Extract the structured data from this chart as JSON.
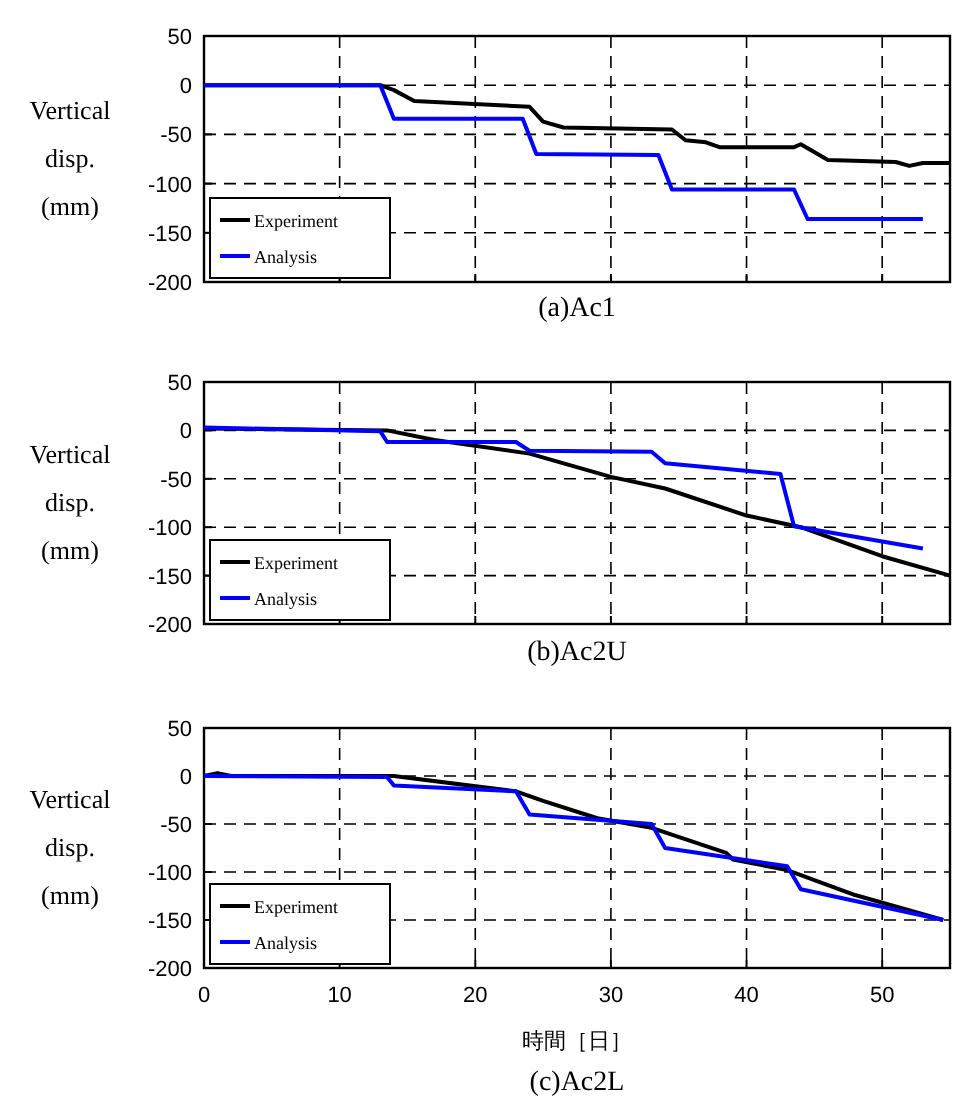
{
  "chart_data": [
    {
      "type": "line",
      "title": "(a)Ac1",
      "ylabel": "Vertical disp. (mm)",
      "xlim": [
        0,
        55
      ],
      "ylim": [
        -200,
        50
      ],
      "xticks": [
        0,
        10,
        20,
        30,
        40,
        50
      ],
      "yticks": [
        -200,
        -150,
        -100,
        -50,
        0,
        50
      ],
      "grid": true,
      "legend": "bottom left",
      "tick_labels": "y",
      "series": [
        {
          "name": "Experiment",
          "color": "#000000",
          "x": [
            0,
            13,
            14,
            15.5,
            24,
            25,
            26.5,
            34.5,
            35.5,
            37,
            38,
            43.5,
            44,
            46,
            51,
            52,
            53,
            55
          ],
          "values": [
            0,
            0,
            -5,
            -16,
            -22,
            -37,
            -43,
            -45,
            -56,
            -58,
            -63,
            -63,
            -60,
            -76,
            -78,
            -82,
            -79,
            -79
          ]
        },
        {
          "name": "Analysis",
          "color": "#0000ff",
          "x": [
            0,
            13,
            14,
            23.5,
            24.5,
            33.5,
            34.5,
            43.5,
            44.5,
            53
          ],
          "values": [
            0,
            0,
            -34,
            -34,
            -70,
            -71,
            -106,
            -106,
            -136,
            -136
          ]
        }
      ]
    },
    {
      "type": "line",
      "title": "(b)Ac2U",
      "ylabel": "Vertical disp. (mm)",
      "xlim": [
        0,
        55
      ],
      "ylim": [
        -200,
        50
      ],
      "xticks": [
        0,
        10,
        20,
        30,
        40,
        50
      ],
      "yticks": [
        -200,
        -150,
        -100,
        -50,
        0,
        50
      ],
      "grid": true,
      "legend": "bottom left",
      "tick_labels": "y",
      "series": [
        {
          "name": "Experiment",
          "color": "#000000",
          "x": [
            0,
            13.5,
            17,
            24,
            30,
            34,
            40,
            44,
            50,
            55
          ],
          "values": [
            2,
            0,
            -10,
            -24,
            -48,
            -60,
            -88,
            -100,
            -130,
            -150
          ]
        },
        {
          "name": "Analysis",
          "color": "#0000ff",
          "x": [
            0,
            13,
            13.5,
            23,
            24,
            33,
            34,
            42.5,
            43.5,
            53
          ],
          "values": [
            3,
            -1,
            -12,
            -12,
            -21,
            -22,
            -34,
            -45,
            -99,
            -122
          ]
        }
      ]
    },
    {
      "type": "line",
      "title": "(c)Ac2L",
      "xlabel": "時間［日］",
      "ylabel": "Vertical disp. (mm)",
      "xlim": [
        0,
        55
      ],
      "ylim": [
        -200,
        50
      ],
      "xticks": [
        0,
        10,
        20,
        30,
        40,
        50
      ],
      "yticks": [
        -200,
        -150,
        -100,
        -50,
        0,
        50
      ],
      "grid": true,
      "legend": "bottom left",
      "series": [
        {
          "name": "Experiment",
          "color": "#000000",
          "x": [
            0,
            1,
            2,
            14,
            23,
            25,
            29,
            33,
            38.5,
            39,
            43,
            48,
            54.5
          ],
          "values": [
            0,
            3,
            0,
            0,
            -16,
            -26,
            -44,
            -54,
            -80,
            -87,
            -98,
            -124,
            -150
          ]
        },
        {
          "name": "Analysis",
          "color": "#0000ff",
          "x": [
            0,
            13.5,
            14,
            23,
            24,
            33,
            34,
            43,
            44,
            54.5
          ],
          "values": [
            0,
            -1,
            -10,
            -16,
            -40,
            -50,
            -75,
            -94,
            -118,
            -150
          ]
        }
      ]
    }
  ]
}
